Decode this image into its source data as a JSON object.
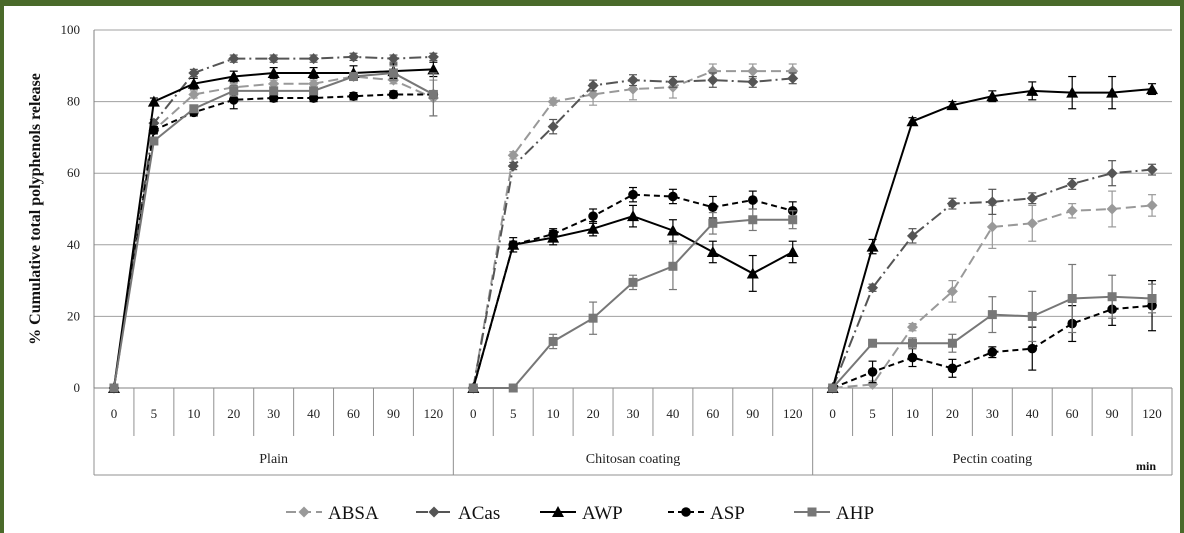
{
  "chart_data": {
    "type": "line",
    "ylabel": "% Cumulative total polyphenols release",
    "ylim": [
      0,
      100
    ],
    "yticks": [
      0,
      20,
      40,
      60,
      80,
      100
    ],
    "x_unit": "min",
    "time_points": [
      "0",
      "5",
      "10",
      "20",
      "30",
      "40",
      "60",
      "90",
      "120"
    ],
    "groups": [
      "Plain",
      "Chitosan coating",
      "Pectin coating"
    ],
    "legend_position": "bottom",
    "grid": "horizontal",
    "series": [
      {
        "name": "ABSA",
        "color": "#999999",
        "dash": "10,5",
        "marker": "diamond",
        "values": [
          [
            0,
            72,
            82,
            84,
            85,
            85,
            87,
            86,
            81
          ],
          [
            0,
            65,
            80,
            82,
            83.5,
            84,
            88.5,
            88.5,
            88.5
          ],
          [
            0,
            1,
            17,
            27,
            45,
            46,
            49.5,
            50,
            51
          ]
        ],
        "errors": [
          [
            0,
            1,
            1,
            1,
            1,
            1,
            1,
            1,
            5
          ],
          [
            0,
            1,
            1,
            3,
            3,
            3,
            2,
            2,
            2
          ],
          [
            0,
            1,
            1,
            3,
            6,
            5,
            2,
            5,
            3
          ]
        ]
      },
      {
        "name": "ACas",
        "color": "#555555",
        "dash": "12,4,2,4",
        "marker": "diamond",
        "values": [
          [
            0,
            74,
            88,
            92,
            92,
            92,
            92.5,
            92,
            92.5
          ],
          [
            0,
            62,
            73,
            84.5,
            86,
            85.5,
            86,
            85.5,
            86.5
          ],
          [
            0,
            28,
            42.5,
            51.5,
            52,
            53,
            57,
            60,
            61
          ]
        ],
        "errors": [
          [
            0,
            1,
            1,
            1,
            1,
            1,
            1,
            1,
            1
          ],
          [
            0,
            1,
            2,
            1.5,
            1.5,
            1.5,
            2,
            1.5,
            1.5
          ],
          [
            0,
            1,
            2,
            1.5,
            3.5,
            1.5,
            1.5,
            3.5,
            1.5
          ]
        ]
      },
      {
        "name": "AWP",
        "color": "#000000",
        "dash": "",
        "marker": "triangle",
        "values": [
          [
            0,
            80,
            85,
            87,
            88,
            88,
            88,
            88.5,
            89
          ],
          [
            0,
            40,
            42,
            44.5,
            48,
            44,
            38,
            32,
            38
          ],
          [
            0,
            39.5,
            74.5,
            79,
            81.5,
            83,
            82.5,
            82.5,
            83.5
          ]
        ],
        "errors": [
          [
            0,
            1,
            1.5,
            1.5,
            1.5,
            1.5,
            2,
            2,
            2
          ],
          [
            0,
            1,
            2,
            2,
            3,
            3,
            3,
            5,
            3
          ],
          [
            0,
            2,
            1,
            1,
            1.5,
            2.5,
            4.5,
            4.5,
            1.5
          ]
        ]
      },
      {
        "name": "ASP",
        "color": "#000000",
        "dash": "6,4",
        "marker": "circle",
        "values": [
          [
            0,
            72,
            77,
            80.5,
            81,
            81,
            81.5,
            82,
            82
          ],
          [
            0,
            40,
            43,
            48,
            54,
            53.5,
            50.5,
            52.5,
            49.5
          ],
          [
            0,
            4.5,
            8.5,
            5.5,
            10,
            11,
            18,
            22,
            23
          ]
        ],
        "errors": [
          [
            0,
            1,
            1,
            2.5,
            1,
            1,
            1,
            1,
            1
          ],
          [
            0,
            2,
            1.5,
            2,
            2,
            2,
            3,
            2.5,
            2.5
          ],
          [
            0,
            3,
            2.5,
            2.5,
            1.5,
            6,
            5,
            4.5,
            7
          ]
        ]
      },
      {
        "name": "AHP",
        "color": "#777777",
        "dash": "",
        "marker": "square",
        "values": [
          [
            0,
            69,
            78,
            83,
            83,
            83,
            87,
            88,
            82
          ],
          [
            0,
            0,
            13,
            19.5,
            29.5,
            34,
            46,
            47,
            47
          ],
          [
            0,
            12.5,
            12.5,
            12.5,
            20.5,
            20,
            25,
            25.5,
            25
          ]
        ],
        "errors": [
          [
            0,
            1,
            1,
            1.5,
            1,
            1,
            1,
            2,
            6
          ],
          [
            0,
            0,
            2,
            4.5,
            2,
            6.5,
            3,
            3,
            2.5
          ],
          [
            0,
            1,
            1.5,
            2.5,
            5,
            7,
            9.5,
            6,
            4
          ]
        ]
      }
    ]
  }
}
